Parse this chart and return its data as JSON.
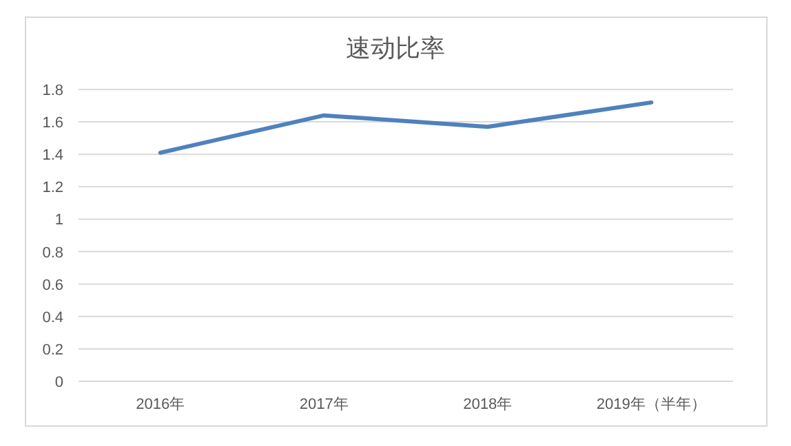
{
  "chart_data": {
    "type": "line",
    "title": "速动比率",
    "categories": [
      "2016年",
      "2017年",
      "2018年",
      "2019年（半年）"
    ],
    "series": [
      {
        "color": "#4f81bd",
        "values": [
          1.41,
          1.64,
          1.57,
          1.72
        ]
      }
    ],
    "ylim": [
      0,
      1.8
    ],
    "yticks": [
      0,
      0.2,
      0.4,
      0.6,
      0.8,
      1,
      1.2,
      1.4,
      1.6,
      1.8
    ],
    "grid": "y",
    "marker": "none",
    "line_style": "solid"
  }
}
